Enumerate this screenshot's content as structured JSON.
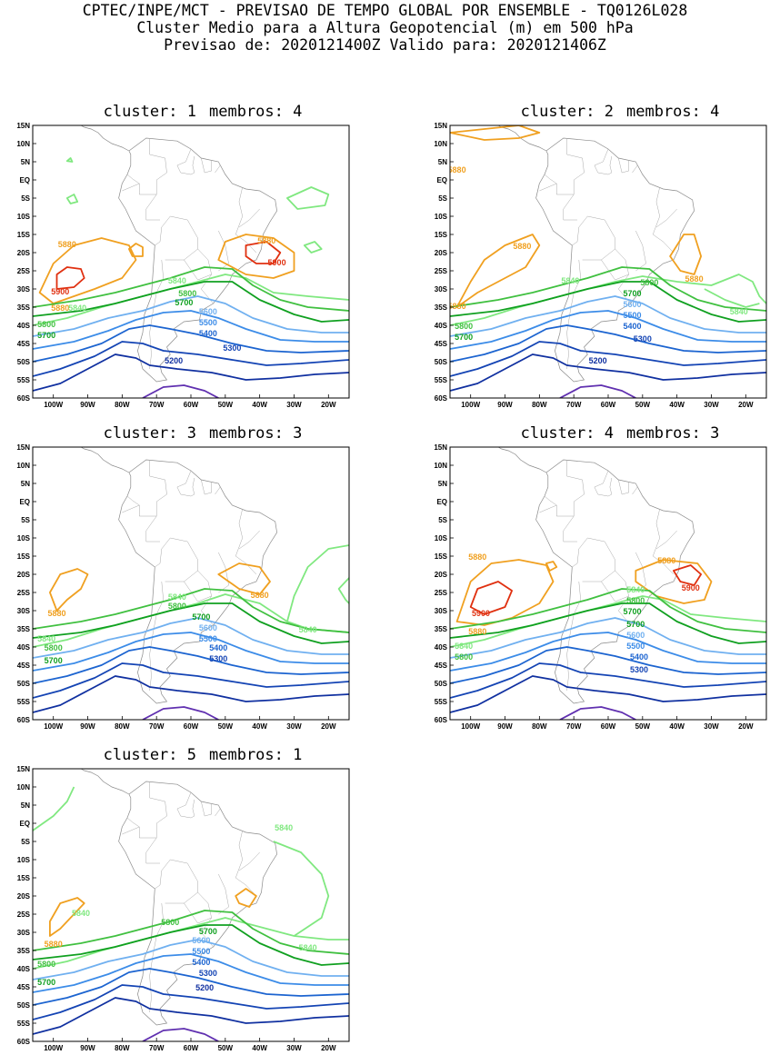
{
  "header": {
    "line1": "CPTEC/INPE/MCT - PREVISAO DE TEMPO GLOBAL POR ENSEMBLE - TQ0126L028",
    "line2": "Cluster Medio para a Altura Geopotencial (m) em 500 hPa",
    "line3": "Previsao de: 2020121400Z    Valido para: 2020121406Z"
  },
  "axes": {
    "y_ticks": [
      "15N",
      "10N",
      "5N",
      "EQ",
      "5S",
      "10S",
      "15S",
      "20S",
      "25S",
      "30S",
      "35S",
      "40S",
      "45S",
      "50S",
      "55S",
      "60S"
    ],
    "x_ticks": [
      "100W",
      "90W",
      "80W",
      "70W",
      "60W",
      "50W",
      "40W",
      "30W",
      "20W"
    ]
  },
  "contour_colors": {
    "5900": "#e03010",
    "5880": "#f0a020",
    "5840": "#80e880",
    "5800": "#40c040",
    "5700": "#10a020",
    "5600": "#70b0f0",
    "5500": "#3c8ce8",
    "5400": "#1c64d0",
    "5300": "#1444b4",
    "5200": "#1030a0",
    "5100": "#6030b0"
  },
  "panels": [
    {
      "cluster_label": "cluster: 1",
      "members_label": "membros: 4",
      "labels": [
        "5880",
        "5880",
        "5880",
        "5900",
        "5900",
        "5840",
        "5840",
        "5800",
        "5800",
        "5700",
        "5700",
        "5600",
        "5500",
        "5400",
        "5300",
        "5200"
      ]
    },
    {
      "cluster_label": "cluster: 2",
      "members_label": "membros: 4",
      "labels": [
        "5880",
        "5880",
        "5880",
        "5880",
        "5840",
        "5840",
        "5800",
        "5800",
        "5700",
        "5700",
        "5600",
        "5500",
        "5400",
        "5300",
        "5200"
      ]
    },
    {
      "cluster_label": "cluster: 3",
      "members_label": "membros: 3",
      "labels": [
        "5880",
        "5880",
        "5840",
        "5840",
        "5840",
        "5800",
        "5800",
        "5700",
        "5700",
        "5600",
        "5500",
        "5400",
        "5300"
      ]
    },
    {
      "cluster_label": "cluster: 4",
      "members_label": "membros: 3",
      "labels": [
        "5880",
        "5880",
        "5880",
        "5900",
        "5900",
        "5840",
        "5840",
        "5800",
        "5800",
        "5700",
        "5700",
        "5600",
        "5500",
        "5400",
        "5300",
        "5200"
      ]
    },
    {
      "cluster_label": "cluster: 5",
      "members_label": "membros: 1",
      "labels": [
        "5840",
        "5840",
        "5840",
        "5880",
        "5800",
        "5800",
        "5700",
        "5700",
        "5600",
        "5500",
        "5400",
        "5300",
        "5200"
      ]
    }
  ]
}
